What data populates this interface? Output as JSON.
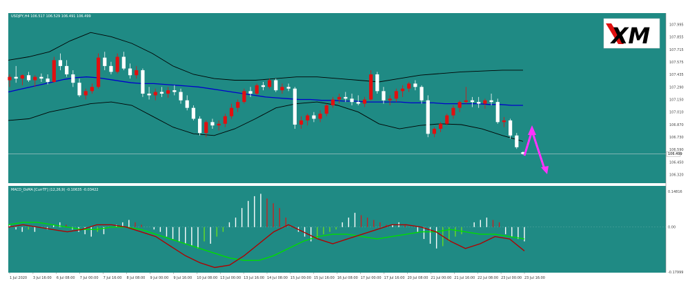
{
  "chart_data": [
    {
      "type": "candlestick",
      "title": "USDJPY,H4  106.517 106.529 106.491 106.499",
      "ylim": [
        106.2,
        108.1
      ],
      "y_ticks": [
        "107.995",
        "107.855",
        "107.715",
        "107.575",
        "107.435",
        "107.290",
        "107.150",
        "107.010",
        "106.870",
        "106.730",
        "106.590",
        "106.450",
        "106.320"
      ],
      "current_price": "106.499",
      "candles": [
        [
          107.38,
          107.45,
          107.3,
          107.42
        ],
        [
          107.42,
          107.55,
          107.35,
          107.4
        ],
        [
          107.4,
          107.45,
          107.32,
          107.44
        ],
        [
          107.44,
          107.48,
          107.36,
          107.38
        ],
        [
          107.38,
          107.44,
          107.3,
          107.42
        ],
        [
          107.42,
          107.46,
          107.36,
          107.4
        ],
        [
          107.4,
          107.45,
          107.33,
          107.36
        ],
        [
          107.36,
          107.66,
          107.35,
          107.62
        ],
        [
          107.62,
          107.7,
          107.5,
          107.55
        ],
        [
          107.55,
          107.62,
          107.42,
          107.45
        ],
        [
          107.45,
          107.5,
          107.3,
          107.35
        ],
        [
          107.35,
          107.4,
          107.18,
          107.2
        ],
        [
          107.2,
          107.28,
          107.15,
          107.25
        ],
        [
          107.25,
          107.34,
          107.22,
          107.3
        ],
        [
          107.3,
          107.7,
          107.28,
          107.65
        ],
        [
          107.65,
          107.72,
          107.5,
          107.55
        ],
        [
          107.55,
          107.6,
          107.45,
          107.48
        ],
        [
          107.48,
          107.7,
          107.46,
          107.66
        ],
        [
          107.66,
          107.72,
          107.5,
          107.52
        ],
        [
          107.52,
          107.58,
          107.4,
          107.44
        ],
        [
          107.44,
          107.55,
          107.4,
          107.5
        ],
        [
          107.5,
          107.52,
          107.18,
          107.22
        ],
        [
          107.22,
          107.3,
          107.15,
          107.2
        ],
        [
          107.2,
          107.28,
          107.14,
          107.24
        ],
        [
          107.24,
          107.3,
          107.18,
          107.22
        ],
        [
          107.22,
          107.3,
          107.17,
          107.26
        ],
        [
          107.26,
          107.32,
          107.2,
          107.24
        ],
        [
          107.24,
          107.28,
          107.1,
          107.14
        ],
        [
          107.14,
          107.2,
          107.02,
          107.05
        ],
        [
          107.05,
          107.08,
          106.9,
          106.92
        ],
        [
          106.92,
          106.95,
          106.72,
          106.75
        ],
        [
          106.75,
          106.9,
          106.7,
          106.88
        ],
        [
          106.88,
          106.92,
          106.8,
          106.84
        ],
        [
          106.84,
          106.9,
          106.78,
          106.86
        ],
        [
          106.86,
          106.98,
          106.82,
          106.95
        ],
        [
          106.95,
          107.1,
          106.92,
          107.05
        ],
        [
          107.05,
          107.15,
          107.0,
          107.12
        ],
        [
          107.12,
          107.28,
          107.1,
          107.25
        ],
        [
          107.25,
          107.3,
          107.18,
          107.22
        ],
        [
          107.22,
          107.34,
          107.2,
          107.32
        ],
        [
          107.32,
          107.36,
          107.26,
          107.3
        ],
        [
          107.3,
          107.4,
          107.28,
          107.38
        ],
        [
          107.38,
          107.4,
          107.24,
          107.26
        ],
        [
          107.26,
          107.34,
          107.22,
          107.3
        ],
        [
          107.3,
          107.34,
          107.25,
          107.28
        ],
        [
          107.28,
          107.3,
          106.8,
          106.85
        ],
        [
          106.85,
          106.95,
          106.8,
          106.9
        ],
        [
          106.9,
          106.98,
          106.84,
          106.96
        ],
        [
          106.96,
          107.0,
          106.88,
          106.92
        ],
        [
          106.92,
          107.02,
          106.88,
          106.98
        ],
        [
          106.98,
          107.1,
          106.95,
          107.08
        ],
        [
          107.08,
          107.18,
          107.05,
          107.15
        ],
        [
          107.15,
          107.22,
          107.1,
          107.18
        ],
        [
          107.18,
          107.24,
          107.12,
          107.16
        ],
        [
          107.16,
          107.22,
          107.08,
          107.12
        ],
        [
          107.12,
          107.2,
          107.08,
          107.1
        ],
        [
          107.1,
          107.18,
          107.06,
          107.15
        ],
        [
          107.15,
          107.5,
          107.14,
          107.45
        ],
        [
          107.45,
          107.48,
          107.22,
          107.25
        ],
        [
          107.25,
          107.3,
          107.1,
          107.14
        ],
        [
          107.14,
          107.2,
          107.08,
          107.16
        ],
        [
          107.16,
          107.28,
          107.12,
          107.25
        ],
        [
          107.25,
          107.32,
          107.18,
          107.28
        ],
        [
          107.28,
          107.36,
          107.24,
          107.34
        ],
        [
          107.34,
          107.38,
          107.26,
          107.3
        ],
        [
          107.3,
          107.32,
          107.1,
          107.14
        ],
        [
          107.14,
          107.2,
          106.7,
          106.74
        ],
        [
          106.74,
          106.82,
          106.7,
          106.8
        ],
        [
          106.8,
          106.88,
          106.76,
          106.86
        ],
        [
          106.86,
          106.98,
          106.84,
          106.96
        ],
        [
          106.96,
          107.08,
          106.92,
          107.05
        ],
        [
          107.05,
          107.14,
          107.0,
          107.12
        ],
        [
          107.12,
          107.3,
          107.1,
          107.14
        ],
        [
          107.14,
          107.18,
          107.06,
          107.12
        ],
        [
          107.12,
          107.18,
          107.05,
          107.1
        ],
        [
          107.1,
          107.16,
          107.04,
          107.14
        ],
        [
          107.14,
          107.22,
          107.08,
          107.12
        ],
        [
          107.12,
          107.16,
          106.86,
          106.88
        ],
        [
          106.88,
          106.94,
          106.82,
          106.9
        ],
        [
          106.9,
          106.92,
          106.68,
          106.72
        ],
        [
          106.72,
          106.75,
          106.56,
          106.58
        ],
        [
          106.52,
          106.53,
          106.49,
          106.5
        ]
      ],
      "moving_average": {
        "color": "#0000cc",
        "values": [
          107.24,
          107.27,
          107.3,
          107.33,
          107.36,
          107.39,
          107.41,
          107.42,
          107.41,
          107.39,
          107.37,
          107.35,
          107.34,
          107.34,
          107.33,
          107.32,
          107.31,
          107.3,
          107.28,
          107.26,
          107.24,
          107.22,
          107.2,
          107.18,
          107.17,
          107.16,
          107.15,
          107.15,
          107.14,
          107.14,
          107.13,
          107.13,
          107.12,
          107.12,
          107.12,
          107.12,
          107.11,
          107.11,
          107.11,
          107.1,
          107.1,
          107.1,
          107.1,
          107.09,
          107.09,
          107.08,
          107.08
        ]
      },
      "bollinger_upper": [
        107.62,
        107.66,
        107.72,
        107.85,
        107.95,
        107.9,
        107.82,
        107.7,
        107.55,
        107.45,
        107.4,
        107.38,
        107.38,
        107.4,
        107.42,
        107.42,
        107.4,
        107.38,
        107.36,
        107.4,
        107.44,
        107.46,
        107.48,
        107.49,
        107.5,
        107.5
      ],
      "bollinger_lower": [
        106.9,
        106.92,
        107.0,
        107.05,
        107.1,
        107.12,
        107.08,
        106.95,
        106.82,
        106.74,
        106.72,
        106.8,
        106.92,
        107.05,
        107.1,
        107.12,
        107.08,
        107.0,
        106.86,
        106.8,
        106.84,
        106.86,
        106.85,
        106.8,
        106.72,
        106.65
      ]
    },
    {
      "type": "macd",
      "title": "MACD_OsMA [CurrTF] (12,26,9) -0.10635 -0.03422",
      "ylim": [
        -0.18,
        0.15
      ],
      "y_ticks": [
        "0.14816",
        "0.00",
        "-0.17999"
      ],
      "histogram": [
        0.01,
        -0.01,
        -0.02,
        -0.01,
        -0.02,
        0.0,
        -0.01,
        0.01,
        0.02,
        0.01,
        -0.01,
        -0.02,
        -0.03,
        -0.04,
        -0.02,
        -0.03,
        0.0,
        0.01,
        0.02,
        0.03,
        0.02,
        0.01,
        0.0,
        -0.01,
        -0.02,
        -0.04,
        -0.05,
        -0.06,
        -0.07,
        -0.08,
        -0.09,
        -0.06,
        -0.07,
        -0.04,
        -0.02,
        0.02,
        0.04,
        0.08,
        0.11,
        0.13,
        0.14,
        0.12,
        0.1,
        0.08,
        0.04,
        0.0,
        -0.02,
        -0.04,
        -0.06,
        -0.05,
        -0.03,
        -0.02,
        -0.01,
        0.02,
        0.04,
        0.06,
        0.05,
        0.04,
        0.03,
        0.02,
        0.01,
        0.01,
        0.02,
        0.01,
        0.0,
        -0.02,
        -0.05,
        -0.07,
        -0.09,
        -0.08,
        -0.06,
        -0.04,
        -0.03,
        0.0,
        0.02,
        0.03,
        0.04,
        0.03,
        0.02,
        -0.03,
        -0.04,
        -0.05,
        -0.06
      ],
      "signal_color": "#00dd00",
      "macd_color": "#b00000",
      "signal": [
        0.01,
        0.02,
        0.02,
        0.01,
        0.0,
        -0.01,
        -0.01,
        0.0,
        0.0,
        -0.01,
        -0.03,
        -0.05,
        -0.07,
        -0.09,
        -0.11,
        -0.13,
        -0.14,
        -0.14,
        -0.12,
        -0.09,
        -0.06,
        -0.04,
        -0.03,
        -0.03,
        -0.04,
        -0.05,
        -0.04,
        -0.03,
        -0.02,
        -0.02,
        -0.01,
        -0.02,
        -0.03,
        -0.03,
        -0.04,
        -0.05
      ],
      "macd": [
        0.0,
        0.01,
        0.0,
        -0.01,
        -0.02,
        -0.01,
        0.01,
        0.01,
        0.0,
        -0.02,
        -0.04,
        -0.08,
        -0.12,
        -0.15,
        -0.17,
        -0.16,
        -0.12,
        -0.07,
        -0.02,
        0.01,
        -0.02,
        -0.05,
        -0.07,
        -0.05,
        -0.03,
        -0.01,
        0.01,
        0.01,
        0.0,
        -0.02,
        -0.06,
        -0.09,
        -0.07,
        -0.04,
        -0.05,
        -0.1
      ]
    }
  ],
  "x_ticks": [
    "1 Jul 2020",
    "3 Jul 16:00",
    "6 Jul 08:00",
    "7 Jul 00:00",
    "7 Jul 16:00",
    "8 Jul 08:00",
    "9 Jul 00:00",
    "9 Jul 16:00",
    "10 Jul 08:00",
    "13 Jul 00:00",
    "13 Jul 16:00",
    "14 Jul 08:00",
    "15 Jul 00:00",
    "15 Jul 16:00",
    "16 Jul 08:00",
    "17 Jul 00:00",
    "17 Jul 16:00",
    "20 Jul 08:00",
    "21 Jul 00:00",
    "21 Jul 16:00",
    "22 Jul 08:00",
    "23 Jul 00:00",
    "23 Jul 16:00"
  ],
  "logo": {
    "text": "XM"
  },
  "colors": {
    "background": "#1f8a84",
    "bull": "#e01010",
    "bear": "#ffffff",
    "arrow": "#ff33ff"
  }
}
